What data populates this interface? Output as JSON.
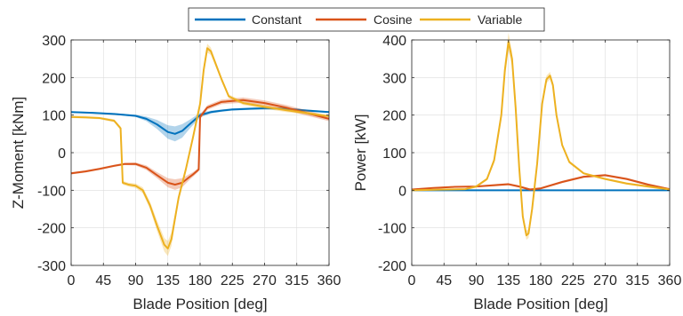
{
  "legend": {
    "entries": [
      {
        "label": "Constant",
        "color": "#0072BD"
      },
      {
        "label": "Cosine",
        "color": "#D95319"
      },
      {
        "label": "Variable",
        "color": "#EDB120"
      }
    ]
  },
  "chart_data": [
    {
      "type": "line",
      "xlabel": "Blade Position [deg]",
      "ylabel": "Z-Moment [kNm]",
      "xlim": [
        0,
        360
      ],
      "ylim": [
        -300,
        300
      ],
      "xticks": [
        0,
        45,
        90,
        135,
        180,
        225,
        270,
        315,
        360
      ],
      "yticks": [
        -300,
        -200,
        -100,
        0,
        100,
        200,
        300
      ],
      "grid": true,
      "series": [
        {
          "name": "Constant",
          "color": "#0072BD",
          "x": [
            0,
            30,
            60,
            90,
            105,
            120,
            135,
            145,
            155,
            165,
            180,
            195,
            210,
            225,
            250,
            270,
            300,
            330,
            360
          ],
          "y": [
            108,
            106,
            103,
            98,
            90,
            75,
            55,
            50,
            58,
            75,
            100,
            108,
            112,
            115,
            117,
            118,
            117,
            112,
            108
          ],
          "band": [
            2,
            2,
            2,
            3,
            6,
            12,
            18,
            20,
            18,
            12,
            6,
            4,
            3,
            3,
            3,
            3,
            3,
            3,
            2
          ]
        },
        {
          "name": "Cosine",
          "color": "#D95319",
          "x": [
            0,
            20,
            40,
            60,
            75,
            90,
            105,
            120,
            135,
            145,
            155,
            165,
            170,
            178,
            180,
            190,
            210,
            240,
            270,
            300,
            330,
            360
          ],
          "y": [
            -55,
            -50,
            -43,
            -35,
            -30,
            -30,
            -40,
            -60,
            -80,
            -85,
            -80,
            -65,
            -58,
            -45,
            95,
            120,
            135,
            140,
            132,
            120,
            105,
            90
          ],
          "band": [
            3,
            3,
            3,
            3,
            3,
            4,
            6,
            8,
            12,
            14,
            12,
            8,
            6,
            5,
            6,
            6,
            6,
            7,
            7,
            7,
            7,
            6
          ]
        },
        {
          "name": "Variable",
          "color": "#EDB120",
          "x": [
            0,
            20,
            40,
            60,
            69,
            72,
            80,
            90,
            100,
            110,
            120,
            130,
            135,
            140,
            145,
            150,
            160,
            170,
            180,
            185,
            190,
            195,
            200,
            210,
            220,
            240,
            270,
            300,
            330,
            360
          ],
          "y": [
            95,
            94,
            92,
            85,
            65,
            -80,
            -85,
            -88,
            -100,
            -140,
            -195,
            -245,
            -255,
            -230,
            -175,
            -120,
            -45,
            40,
            130,
            220,
            278,
            270,
            245,
            195,
            150,
            132,
            122,
            113,
            105,
            97
          ],
          "band": [
            3,
            3,
            3,
            4,
            5,
            5,
            5,
            6,
            8,
            10,
            14,
            18,
            20,
            18,
            14,
            10,
            8,
            8,
            10,
            12,
            12,
            10,
            8,
            6,
            5,
            5,
            5,
            5,
            4,
            3
          ]
        }
      ]
    },
    {
      "type": "line",
      "xlabel": "Blade Position [deg]",
      "ylabel": "Power [kW]",
      "xlim": [
        0,
        360
      ],
      "ylim": [
        -200,
        400
      ],
      "xticks": [
        0,
        45,
        90,
        135,
        180,
        225,
        270,
        315,
        360
      ],
      "yticks": [
        -200,
        -100,
        0,
        100,
        200,
        300,
        400
      ],
      "grid": true,
      "series": [
        {
          "name": "Constant",
          "color": "#0072BD",
          "x": [
            0,
            90,
            180,
            270,
            360
          ],
          "y": [
            0,
            0,
            0,
            0,
            0
          ],
          "band": [
            1,
            1,
            1,
            1,
            1
          ]
        },
        {
          "name": "Cosine",
          "color": "#D95319",
          "x": [
            0,
            30,
            60,
            90,
            120,
            135,
            150,
            165,
            180,
            210,
            240,
            270,
            300,
            330,
            360
          ],
          "y": [
            2,
            6,
            9,
            10,
            14,
            16,
            10,
            2,
            5,
            22,
            36,
            40,
            30,
            15,
            3
          ],
          "band": [
            2,
            2,
            2,
            2,
            3,
            3,
            3,
            3,
            3,
            3,
            3,
            3,
            3,
            3,
            2
          ]
        },
        {
          "name": "Variable",
          "color": "#EDB120",
          "x": [
            0,
            45,
            75,
            90,
            105,
            115,
            125,
            130,
            135,
            140,
            145,
            150,
            155,
            160,
            163,
            168,
            175,
            182,
            188,
            193,
            197,
            202,
            210,
            220,
            240,
            270,
            300,
            330,
            360
          ],
          "y": [
            0,
            2,
            3,
            10,
            30,
            80,
            200,
            320,
            395,
            350,
            220,
            60,
            -70,
            -120,
            -115,
            -50,
            70,
            230,
            295,
            305,
            280,
            200,
            120,
            75,
            45,
            30,
            18,
            10,
            2
          ],
          "band": [
            2,
            2,
            2,
            3,
            4,
            8,
            14,
            20,
            24,
            20,
            14,
            10,
            10,
            12,
            12,
            10,
            10,
            10,
            10,
            10,
            8,
            6,
            5,
            4,
            3,
            3,
            3,
            3,
            2
          ]
        }
      ]
    }
  ]
}
